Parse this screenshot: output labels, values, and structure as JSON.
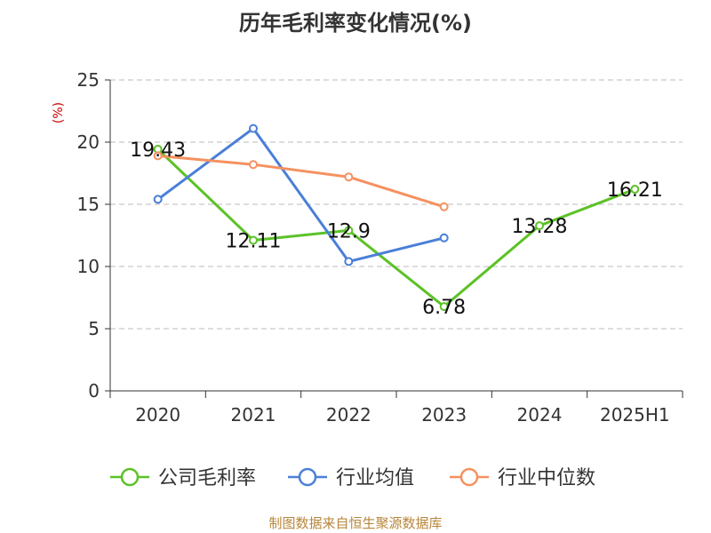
{
  "chart_data": {
    "type": "line",
    "title": "历年毛利率变化情况(%)",
    "ylabel": "(%)",
    "xlabel": "",
    "categories": [
      "2020",
      "2021",
      "2022",
      "2023",
      "2024",
      "2025H1"
    ],
    "ylim": [
      0,
      25
    ],
    "yticks": [
      0,
      5,
      10,
      15,
      20,
      25
    ],
    "grid": true,
    "legend_position": "bottom",
    "series": [
      {
        "name": "公司毛利率",
        "color": "#5bc227",
        "values": [
          19.43,
          12.11,
          12.9,
          6.78,
          13.28,
          16.21
        ],
        "labels": [
          "19.43",
          "12.11",
          "12.9",
          "6.78",
          "13.28",
          "16.21"
        ],
        "show_labels": true
      },
      {
        "name": "行业均值",
        "color": "#4a7fd8",
        "values": [
          15.4,
          21.1,
          10.4,
          12.3,
          null,
          null
        ],
        "show_labels": false
      },
      {
        "name": "行业中位数",
        "color": "#f59160",
        "values": [
          18.9,
          18.2,
          17.2,
          14.8,
          null,
          null
        ],
        "show_labels": false
      }
    ]
  },
  "source_note": "制图数据来自恒生聚源数据库",
  "colors": {
    "axis": "#333333",
    "grid": "#bbbbbb",
    "ylabel": "#cc0000",
    "source": "#b8863b"
  }
}
